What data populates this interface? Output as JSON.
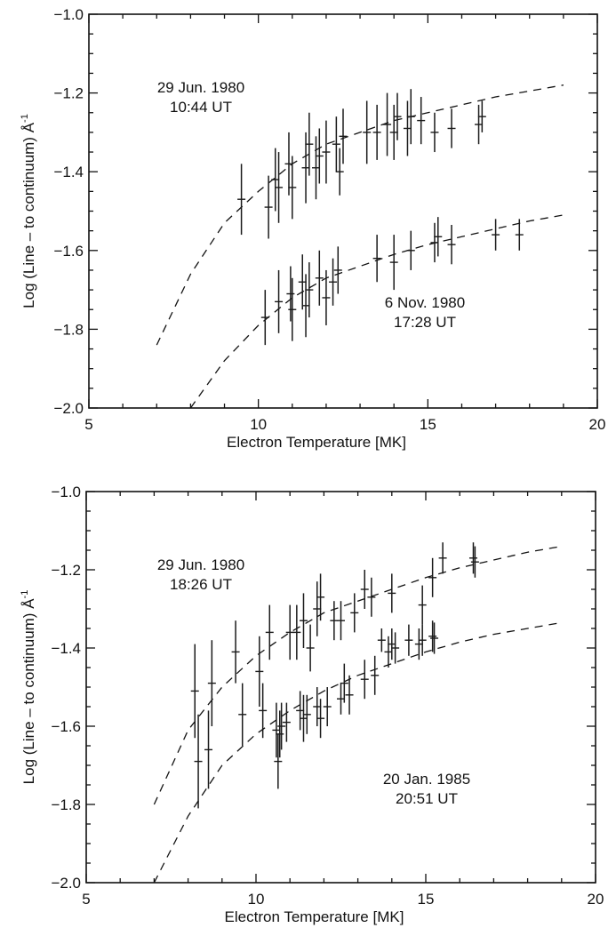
{
  "chart_data": [
    {
      "type": "scatter",
      "title": "",
      "xlabel": "Electron Temperature [MK]",
      "ylabel": "Log (Line – to continuum) Å",
      "ylabel_superscript": "-1",
      "xlim": [
        5,
        20
      ],
      "ylim": [
        -2.0,
        -1.0
      ],
      "xticks": [
        5,
        10,
        15,
        20
      ],
      "xtick_labels": [
        "5",
        "10",
        "15",
        "20"
      ],
      "yticks": [
        -2.0,
        -1.8,
        -1.6,
        -1.4,
        -1.2,
        -1.0
      ],
      "ytick_labels": [
        "−2.0",
        "−1.8",
        "−1.6",
        "−1.4",
        "−1.2",
        "−1.0"
      ],
      "grid": false,
      "series": [
        {
          "name": "29 Jun. 1980 10:44 UT",
          "annotation": [
            "29 Jun. 1980",
            "10:44 UT"
          ],
          "fit_curve": {
            "style": "dashed",
            "x": [
              7.0,
              8,
              9,
              10,
              11,
              12,
              13,
              14,
              15,
              16,
              17,
              18,
              19
            ],
            "y": [
              -1.84,
              -1.66,
              -1.53,
              -1.45,
              -1.38,
              -1.33,
              -1.3,
              -1.27,
              -1.25,
              -1.23,
              -1.21,
              -1.195,
              -1.18
            ]
          },
          "points": [
            {
              "x": 9.5,
              "y": -1.47,
              "err": 0.09
            },
            {
              "x": 10.3,
              "y": -1.49,
              "err": 0.08
            },
            {
              "x": 10.5,
              "y": -1.42,
              "err": 0.08
            },
            {
              "x": 10.6,
              "y": -1.44,
              "err": 0.09
            },
            {
              "x": 10.9,
              "y": -1.38,
              "err": 0.08
            },
            {
              "x": 11.0,
              "y": -1.44,
              "err": 0.08
            },
            {
              "x": 11.4,
              "y": -1.39,
              "err": 0.09
            },
            {
              "x": 11.5,
              "y": -1.33,
              "err": 0.08
            },
            {
              "x": 11.7,
              "y": -1.39,
              "err": 0.08
            },
            {
              "x": 11.8,
              "y": -1.36,
              "err": 0.07
            },
            {
              "x": 12.0,
              "y": -1.35,
              "err": 0.08
            },
            {
              "x": 12.3,
              "y": -1.33,
              "err": 0.07
            },
            {
              "x": 12.4,
              "y": -1.4,
              "err": 0.06
            },
            {
              "x": 12.5,
              "y": -1.31,
              "err": 0.07
            },
            {
              "x": 13.2,
              "y": -1.3,
              "err": 0.08
            },
            {
              "x": 13.5,
              "y": -1.3,
              "err": 0.07
            },
            {
              "x": 13.8,
              "y": -1.28,
              "err": 0.08
            },
            {
              "x": 14.0,
              "y": -1.3,
              "err": 0.07
            },
            {
              "x": 14.1,
              "y": -1.26,
              "err": 0.06
            },
            {
              "x": 14.4,
              "y": -1.29,
              "err": 0.07
            },
            {
              "x": 14.5,
              "y": -1.26,
              "err": 0.07
            },
            {
              "x": 14.8,
              "y": -1.27,
              "err": 0.06
            },
            {
              "x": 15.2,
              "y": -1.3,
              "err": 0.05
            },
            {
              "x": 15.7,
              "y": -1.29,
              "err": 0.05
            },
            {
              "x": 16.5,
              "y": -1.28,
              "err": 0.05
            },
            {
              "x": 16.6,
              "y": -1.26,
              "err": 0.04
            }
          ]
        },
        {
          "name": "6 Nov. 1980 17:28 UT",
          "annotation": [
            "6 Nov. 1980",
            "17:28 UT"
          ],
          "fit_curve": {
            "style": "dashed",
            "x": [
              8.0,
              9,
              10,
              11,
              12,
              13,
              14,
              15,
              16,
              17,
              18,
              19
            ],
            "y": [
              -2.0,
              -1.88,
              -1.79,
              -1.72,
              -1.67,
              -1.64,
              -1.61,
              -1.585,
              -1.565,
              -1.545,
              -1.525,
              -1.51
            ]
          },
          "points": [
            {
              "x": 10.2,
              "y": -1.77,
              "err": 0.07
            },
            {
              "x": 10.6,
              "y": -1.73,
              "err": 0.08
            },
            {
              "x": 10.95,
              "y": -1.71,
              "err": 0.07
            },
            {
              "x": 11.0,
              "y": -1.75,
              "err": 0.08
            },
            {
              "x": 11.3,
              "y": -1.68,
              "err": 0.07
            },
            {
              "x": 11.4,
              "y": -1.74,
              "err": 0.08
            },
            {
              "x": 11.5,
              "y": -1.7,
              "err": 0.07
            },
            {
              "x": 11.8,
              "y": -1.67,
              "err": 0.07
            },
            {
              "x": 12.0,
              "y": -1.72,
              "err": 0.07
            },
            {
              "x": 12.2,
              "y": -1.68,
              "err": 0.06
            },
            {
              "x": 12.35,
              "y": -1.65,
              "err": 0.06
            },
            {
              "x": 13.5,
              "y": -1.62,
              "err": 0.06
            },
            {
              "x": 14.0,
              "y": -1.63,
              "err": 0.07
            },
            {
              "x": 14.5,
              "y": -1.6,
              "err": 0.05
            },
            {
              "x": 15.2,
              "y": -1.58,
              "err": 0.05
            },
            {
              "x": 15.3,
              "y": -1.565,
              "err": 0.05
            },
            {
              "x": 15.7,
              "y": -1.585,
              "err": 0.05
            },
            {
              "x": 17.0,
              "y": -1.56,
              "err": 0.04
            },
            {
              "x": 17.7,
              "y": -1.56,
              "err": 0.04
            }
          ]
        }
      ]
    },
    {
      "type": "scatter",
      "title": "",
      "xlabel": "Electron Temperature [MK]",
      "ylabel": "Log (Line – to continuum) Å",
      "ylabel_superscript": "-1",
      "xlim": [
        5,
        20
      ],
      "ylim": [
        -2.0,
        -1.0
      ],
      "xticks": [
        5,
        10,
        15,
        20
      ],
      "xtick_labels": [
        "5",
        "10",
        "15",
        "20"
      ],
      "yticks": [
        -2.0,
        -1.8,
        -1.6,
        -1.4,
        -1.2,
        -1.0
      ],
      "ytick_labels": [
        "−2.0",
        "−1.8",
        "−1.6",
        "−1.4",
        "−1.2",
        "−1.0"
      ],
      "grid": false,
      "series": [
        {
          "name": "29 Jun. 1980 18:26 UT",
          "annotation": [
            "29 Jun. 1980",
            "18:26 UT"
          ],
          "fit_curve": {
            "style": "dashed",
            "x": [
              7.0,
              8,
              9,
              10,
              11,
              12,
              13,
              14,
              15,
              16,
              17,
              18,
              19
            ],
            "y": [
              -1.8,
              -1.61,
              -1.5,
              -1.42,
              -1.36,
              -1.31,
              -1.28,
              -1.25,
              -1.22,
              -1.195,
              -1.175,
              -1.155,
              -1.14
            ]
          },
          "points": [
            {
              "x": 8.2,
              "y": -1.51,
              "err": 0.12
            },
            {
              "x": 8.3,
              "y": -1.69,
              "err": 0.12
            },
            {
              "x": 8.6,
              "y": -1.66,
              "err": 0.1
            },
            {
              "x": 8.7,
              "y": -1.49,
              "err": 0.11
            },
            {
              "x": 9.4,
              "y": -1.41,
              "err": 0.08
            },
            {
              "x": 9.6,
              "y": -1.57,
              "err": 0.08
            },
            {
              "x": 10.1,
              "y": -1.46,
              "err": 0.09
            },
            {
              "x": 10.2,
              "y": -1.56,
              "err": 0.07
            },
            {
              "x": 10.4,
              "y": -1.36,
              "err": 0.07
            },
            {
              "x": 11.0,
              "y": -1.36,
              "err": 0.07
            },
            {
              "x": 11.2,
              "y": -1.36,
              "err": 0.07
            },
            {
              "x": 11.4,
              "y": -1.33,
              "err": 0.07
            },
            {
              "x": 11.6,
              "y": -1.4,
              "err": 0.06
            },
            {
              "x": 11.8,
              "y": -1.3,
              "err": 0.07
            },
            {
              "x": 11.9,
              "y": -1.27,
              "err": 0.06
            },
            {
              "x": 12.3,
              "y": -1.33,
              "err": 0.05
            },
            {
              "x": 12.5,
              "y": -1.33,
              "err": 0.05
            },
            {
              "x": 12.9,
              "y": -1.31,
              "err": 0.05
            },
            {
              "x": 13.2,
              "y": -1.25,
              "err": 0.05
            },
            {
              "x": 13.4,
              "y": -1.27,
              "err": 0.05
            },
            {
              "x": 14.0,
              "y": -1.26,
              "err": 0.05
            },
            {
              "x": 14.9,
              "y": -1.29,
              "err": 0.05
            },
            {
              "x": 15.2,
              "y": -1.22,
              "err": 0.05
            },
            {
              "x": 15.5,
              "y": -1.17,
              "err": 0.04
            },
            {
              "x": 16.4,
              "y": -1.17,
              "err": 0.04
            },
            {
              "x": 16.45,
              "y": -1.18,
              "err": 0.04
            }
          ]
        },
        {
          "name": "20 Jan. 1985 20:51 UT",
          "annotation": [
            "20 Jan. 1985",
            "20:51 UT"
          ],
          "fit_curve": {
            "style": "dashed",
            "x": [
              7.0,
              8,
              9,
              10,
              11,
              12,
              13,
              14,
              15,
              16,
              17,
              18,
              19
            ],
            "y": [
              -2.0,
              -1.83,
              -1.7,
              -1.62,
              -1.56,
              -1.51,
              -1.47,
              -1.44,
              -1.41,
              -1.385,
              -1.365,
              -1.35,
              -1.335
            ]
          },
          "points": [
            {
              "x": 10.6,
              "y": -1.61,
              "err": 0.07
            },
            {
              "x": 10.65,
              "y": -1.69,
              "err": 0.07
            },
            {
              "x": 10.7,
              "y": -1.62,
              "err": 0.06
            },
            {
              "x": 10.75,
              "y": -1.6,
              "err": 0.06
            },
            {
              "x": 10.9,
              "y": -1.59,
              "err": 0.05
            },
            {
              "x": 11.3,
              "y": -1.56,
              "err": 0.05
            },
            {
              "x": 11.4,
              "y": -1.58,
              "err": 0.06
            },
            {
              "x": 11.5,
              "y": -1.57,
              "err": 0.05
            },
            {
              "x": 11.8,
              "y": -1.55,
              "err": 0.05
            },
            {
              "x": 11.9,
              "y": -1.58,
              "err": 0.05
            },
            {
              "x": 12.1,
              "y": -1.55,
              "err": 0.05
            },
            {
              "x": 12.5,
              "y": -1.53,
              "err": 0.04
            },
            {
              "x": 12.6,
              "y": -1.49,
              "err": 0.05
            },
            {
              "x": 12.75,
              "y": -1.52,
              "err": 0.05
            },
            {
              "x": 13.2,
              "y": -1.48,
              "err": 0.05
            },
            {
              "x": 13.5,
              "y": -1.47,
              "err": 0.05
            },
            {
              "x": 13.7,
              "y": -1.38,
              "err": 0.03
            },
            {
              "x": 13.9,
              "y": -1.41,
              "err": 0.04
            },
            {
              "x": 14.0,
              "y": -1.39,
              "err": 0.04
            },
            {
              "x": 14.1,
              "y": -1.4,
              "err": 0.04
            },
            {
              "x": 14.5,
              "y": -1.38,
              "err": 0.04
            },
            {
              "x": 14.8,
              "y": -1.39,
              "err": 0.04
            },
            {
              "x": 14.9,
              "y": -1.38,
              "err": 0.04
            },
            {
              "x": 15.2,
              "y": -1.37,
              "err": 0.04
            },
            {
              "x": 15.25,
              "y": -1.375,
              "err": 0.04
            }
          ]
        }
      ]
    }
  ]
}
